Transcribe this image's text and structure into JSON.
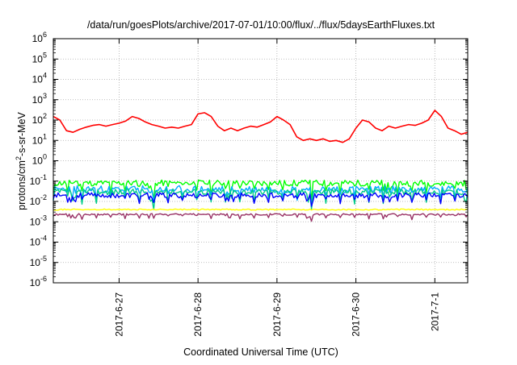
{
  "chart_data": {
    "type": "line",
    "title": "/data/run/goesPlots/archive/2017-07-01/10:00/flux/../flux/5daysEarthFluxes.txt",
    "xlabel": "Coordinated Universal Time (UTC)",
    "ylabel": "protons/cm2-s-sr-MeV",
    "y_scale": "log",
    "ylim": [
      1e-06,
      1000000.0
    ],
    "y_ticks": [
      {
        "value": 1e-06,
        "base": "10",
        "exp": "-6"
      },
      {
        "value": 1e-05,
        "base": "10",
        "exp": "-5"
      },
      {
        "value": 0.0001,
        "base": "10",
        "exp": "-4"
      },
      {
        "value": 0.001,
        "base": "10",
        "exp": "-3"
      },
      {
        "value": 0.01,
        "base": "10",
        "exp": "-2"
      },
      {
        "value": 0.1,
        "base": "10",
        "exp": "-1"
      },
      {
        "value": 1,
        "base": "10",
        "exp": "0"
      },
      {
        "value": 10,
        "base": "10",
        "exp": "1"
      },
      {
        "value": 100,
        "base": "10",
        "exp": "2"
      },
      {
        "value": 1000,
        "base": "10",
        "exp": "3"
      },
      {
        "value": 10000,
        "base": "10",
        "exp": "4"
      },
      {
        "value": 100000,
        "base": "10",
        "exp": "5"
      },
      {
        "value": 1000000,
        "base": "10",
        "exp": "6"
      }
    ],
    "x_range": [
      "2017-06-26 04:00",
      "2017-07-01 10:00"
    ],
    "x_ticks": [
      {
        "value": "2017-06-27 00:00",
        "label": "2017-6-27"
      },
      {
        "value": "2017-06-28 00:00",
        "label": "2017-6-28"
      },
      {
        "value": "2017-06-29 00:00",
        "label": "2017-6-29"
      },
      {
        "value": "2017-06-30 00:00",
        "label": "2017-6-30"
      },
      {
        "value": "2017-07-01 00:00",
        "label": "2017-7-1"
      }
    ],
    "grid": true,
    "series": [
      {
        "color": "#ff0000",
        "points": [
          [
            "2017-06-26 04:00",
            150
          ],
          [
            "2017-06-26 06:00",
            100
          ],
          [
            "2017-06-26 08:00",
            30
          ],
          [
            "2017-06-26 10:00",
            25
          ],
          [
            "2017-06-26 12:00",
            35
          ],
          [
            "2017-06-26 14:00",
            45
          ],
          [
            "2017-06-26 16:00",
            55
          ],
          [
            "2017-06-26 18:00",
            60
          ],
          [
            "2017-06-26 20:00",
            50
          ],
          [
            "2017-06-26 22:00",
            60
          ],
          [
            "2017-06-27 00:00",
            70
          ],
          [
            "2017-06-27 02:00",
            90
          ],
          [
            "2017-06-27 04:00",
            150
          ],
          [
            "2017-06-27 06:00",
            120
          ],
          [
            "2017-06-27 08:00",
            80
          ],
          [
            "2017-06-27 10:00",
            60
          ],
          [
            "2017-06-27 12:00",
            50
          ],
          [
            "2017-06-27 14:00",
            40
          ],
          [
            "2017-06-27 16:00",
            45
          ],
          [
            "2017-06-27 18:00",
            40
          ],
          [
            "2017-06-27 20:00",
            50
          ],
          [
            "2017-06-27 22:00",
            60
          ],
          [
            "2017-06-28 00:00",
            200
          ],
          [
            "2017-06-28 02:00",
            230
          ],
          [
            "2017-06-28 04:00",
            150
          ],
          [
            "2017-06-28 06:00",
            50
          ],
          [
            "2017-06-28 08:00",
            30
          ],
          [
            "2017-06-28 10:00",
            40
          ],
          [
            "2017-06-28 12:00",
            30
          ],
          [
            "2017-06-28 14:00",
            40
          ],
          [
            "2017-06-28 16:00",
            50
          ],
          [
            "2017-06-28 18:00",
            45
          ],
          [
            "2017-06-28 20:00",
            60
          ],
          [
            "2017-06-28 22:00",
            80
          ],
          [
            "2017-06-29 00:00",
            150
          ],
          [
            "2017-06-29 02:00",
            100
          ],
          [
            "2017-06-29 04:00",
            60
          ],
          [
            "2017-06-29 06:00",
            15
          ],
          [
            "2017-06-29 08:00",
            10
          ],
          [
            "2017-06-29 10:00",
            12
          ],
          [
            "2017-06-29 12:00",
            10
          ],
          [
            "2017-06-29 14:00",
            12
          ],
          [
            "2017-06-29 16:00",
            9
          ],
          [
            "2017-06-29 18:00",
            10
          ],
          [
            "2017-06-29 20:00",
            8
          ],
          [
            "2017-06-29 22:00",
            12
          ],
          [
            "2017-06-30 00:00",
            40
          ],
          [
            "2017-06-30 02:00",
            100
          ],
          [
            "2017-06-30 04:00",
            80
          ],
          [
            "2017-06-30 06:00",
            40
          ],
          [
            "2017-06-30 08:00",
            30
          ],
          [
            "2017-06-30 10:00",
            50
          ],
          [
            "2017-06-30 12:00",
            40
          ],
          [
            "2017-06-30 14:00",
            50
          ],
          [
            "2017-06-30 16:00",
            60
          ],
          [
            "2017-06-30 18:00",
            55
          ],
          [
            "2017-06-30 20:00",
            70
          ],
          [
            "2017-06-30 22:00",
            100
          ],
          [
            "2017-07-01 00:00",
            300
          ],
          [
            "2017-07-01 02:00",
            150
          ],
          [
            "2017-07-01 04:00",
            40
          ],
          [
            "2017-07-01 06:00",
            30
          ],
          [
            "2017-07-01 08:00",
            20
          ],
          [
            "2017-07-01 10:00",
            25
          ]
        ]
      },
      {
        "color": "#00ff00",
        "base": 0.08,
        "amp": 0.3,
        "dip": 0.35,
        "seed": 11
      },
      {
        "color": "#00aaff",
        "base": 0.04,
        "amp": 0.35,
        "dip": 0.3,
        "seed": 23
      },
      {
        "color": "#00cc88",
        "base": 0.03,
        "amp": 0.3,
        "dip": 0.4,
        "seed": 37
      },
      {
        "color": "#0000ff",
        "base": 0.02,
        "amp": 0.25,
        "dip": 0.25,
        "seed": 53
      },
      {
        "color": "#ffff00",
        "base": 0.004,
        "amp": 0.06,
        "dip": 0.0,
        "seed": 71
      },
      {
        "color": "#993366",
        "base": 0.0023,
        "amp": 0.08,
        "dip": 0.15,
        "seed": 89
      }
    ]
  }
}
